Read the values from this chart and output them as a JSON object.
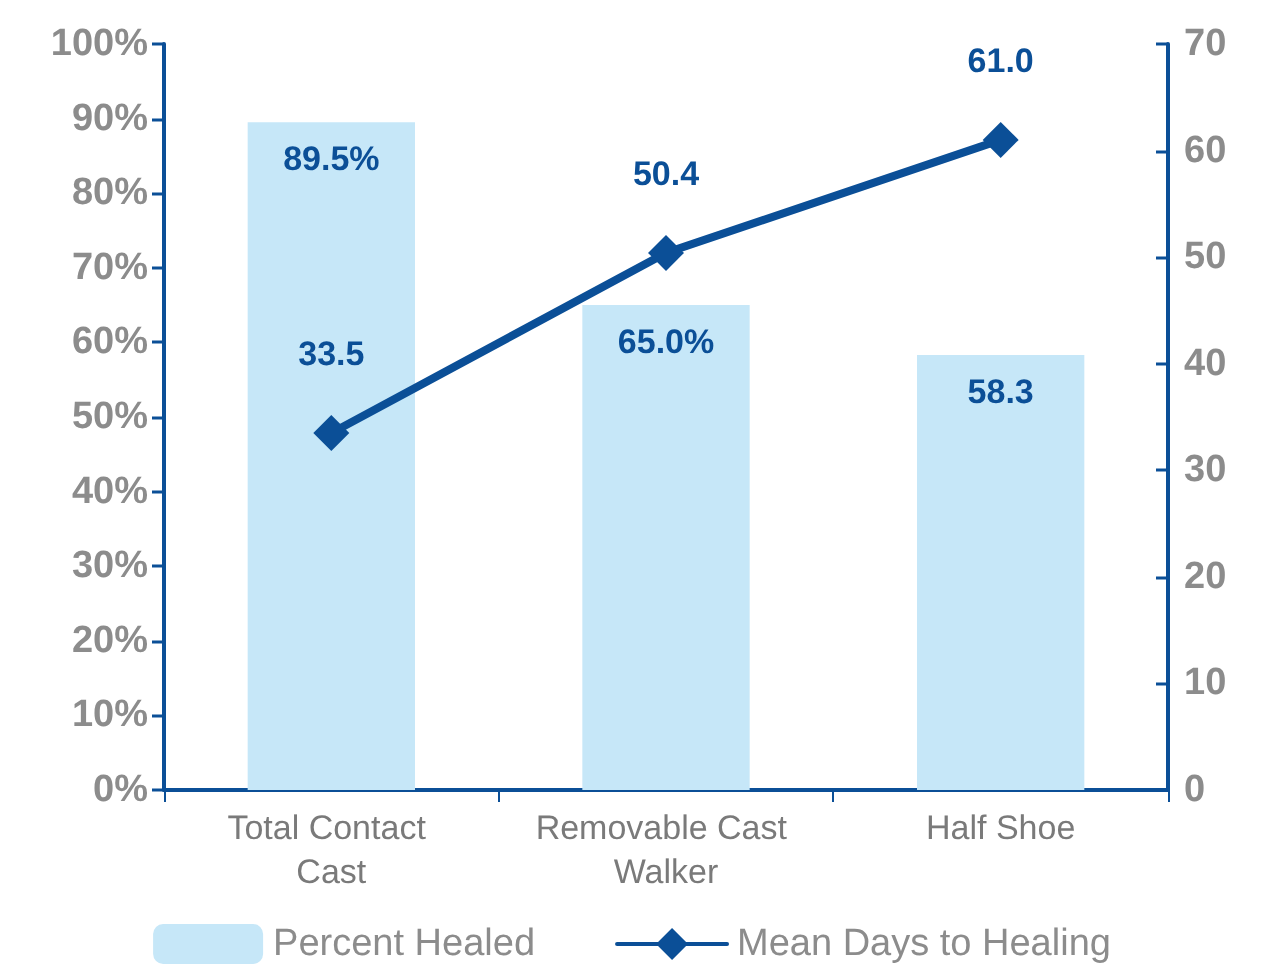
{
  "chart_data": {
    "type": "bar",
    "categories": [
      "Total Contact Cast",
      "Removable Cast Walker",
      "Half Shoe"
    ],
    "series": [
      {
        "name": "Percent Healed",
        "color": "#c6e7f8",
        "values": [
          89.5,
          65.0,
          58.3
        ],
        "value_labels": [
          "89.5%",
          "65.0%",
          "58.3"
        ]
      },
      {
        "name": "Mean Days to Healing",
        "type": "line",
        "axis": "y2",
        "color": "#0b4f97",
        "values": [
          33.5,
          50.4,
          61.0
        ],
        "value_labels": [
          "33.5",
          "50.4",
          "61.0"
        ],
        "marker": "diamond",
        "line_style": "solid"
      }
    ],
    "ylim": [
      0,
      100
    ],
    "yticks": [
      {
        "value": 0,
        "label": "0%"
      },
      {
        "value": 10,
        "label": "10%"
      },
      {
        "value": 20,
        "label": "20%"
      },
      {
        "value": 30,
        "label": "30%"
      },
      {
        "value": 40,
        "label": "40%"
      },
      {
        "value": 50,
        "label": "50%"
      },
      {
        "value": 60,
        "label": "60%"
      },
      {
        "value": 70,
        "label": "70%"
      },
      {
        "value": 80,
        "label": "80%"
      },
      {
        "value": 90,
        "label": "90%"
      },
      {
        "value": 100,
        "label": "100%"
      }
    ],
    "y2lim": [
      0,
      70
    ],
    "y2ticks": [
      0,
      10,
      20,
      30,
      40,
      50,
      60,
      70
    ],
    "grid": false,
    "legend": "bottom"
  }
}
